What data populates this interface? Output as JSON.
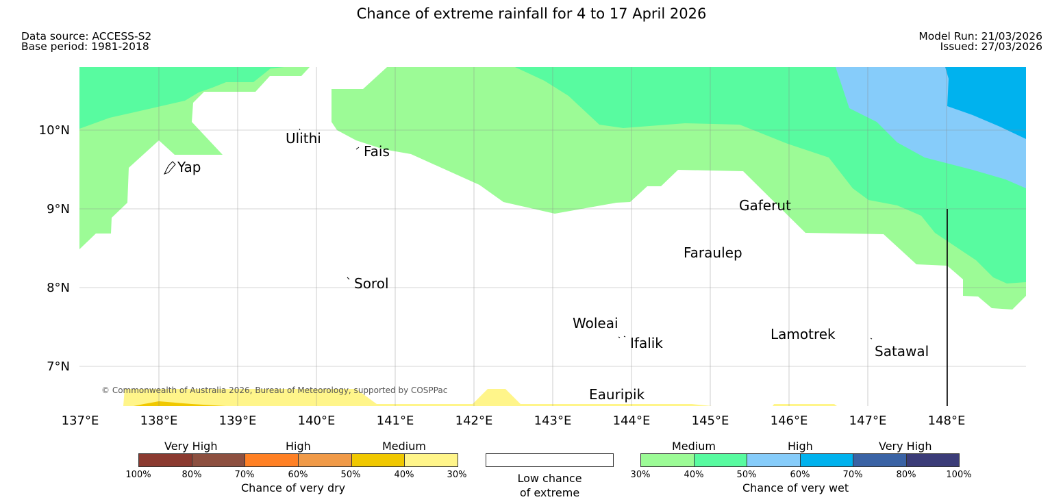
{
  "title": "Chance of extreme rainfall for 4 to 17 April 2026",
  "meta_left": {
    "source": "Data source: ACCESS-S2",
    "base": "Base period: 1981-2018"
  },
  "meta_right": {
    "run": "Model Run: 21/03/2026",
    "issued": "Issued: 27/03/2026"
  },
  "axes": {
    "lat_labels": [
      "10°N",
      "9°N",
      "8°N",
      "7°N"
    ],
    "lon_labels": [
      "137°E",
      "138°E",
      "139°E",
      "140°E",
      "141°E",
      "142°E",
      "143°E",
      "144°E",
      "145°E",
      "146°E",
      "147°E",
      "148°E"
    ]
  },
  "places": {
    "ulithi": "Ulithi",
    "fais": "Fais",
    "yap": "Yap",
    "gaferut": "Gaferut",
    "faraulep": "Faraulep",
    "sorol": "Sorol",
    "woleai": "Woleai",
    "ifalik": "Ifalik",
    "lamotrek": "Lamotrek",
    "satawal": "Satawal",
    "eauripik": "Eauripik"
  },
  "copyright": "© Commonwealth of Australia 2026, Bureau of Meteorology, supported by COSPPac",
  "legend": {
    "dry": {
      "groups": [
        "Very High",
        "High",
        "Medium"
      ],
      "ticks": [
        "100%",
        "80%",
        "70%",
        "60%",
        "50%",
        "40%",
        "30%"
      ],
      "caption": "Chance of very dry",
      "colors": [
        "#8b3a30",
        "#8d5040",
        "#ff8024",
        "#f09a48",
        "#f0c800",
        "#fff58a"
      ]
    },
    "neutral": {
      "caption_line1": "Low chance",
      "caption_line2": "of extreme"
    },
    "wet": {
      "groups": [
        "Medium",
        "High",
        "Very High"
      ],
      "ticks": [
        "30%",
        "40%",
        "50%",
        "60%",
        "70%",
        "80%",
        "100%"
      ],
      "caption": "Chance of very wet",
      "colors": [
        "#9cfb96",
        "#58fba0",
        "#86ccfa",
        "#00b2ee",
        "#3a63a5",
        "#3b3c78"
      ]
    }
  }
}
